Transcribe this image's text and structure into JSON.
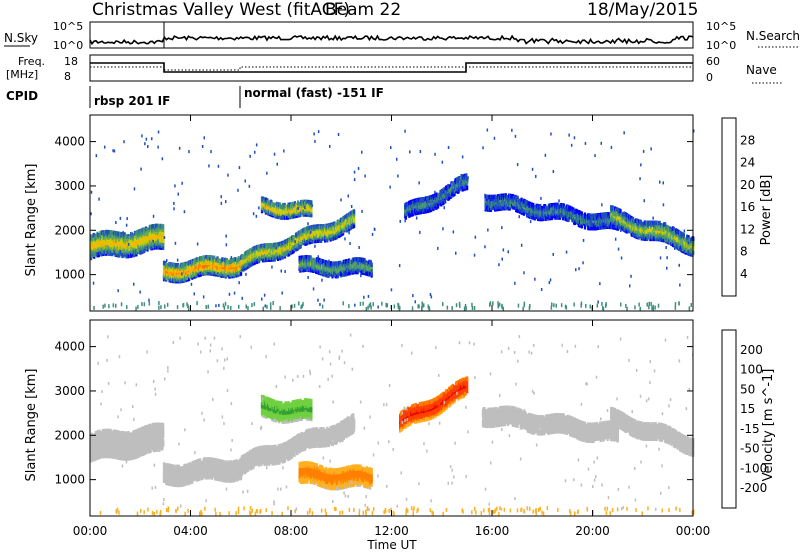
{
  "header": {
    "title": "Christmas Valley West (fitACF)",
    "beam": "Beam 22",
    "date": "18/May/2015"
  },
  "noise_panel": {
    "left_label": "N.Sky",
    "right_label": "N.Search",
    "left_ticks": [
      "10^5",
      "10^0"
    ],
    "right_ticks": [
      "10^5",
      "10^0"
    ]
  },
  "freq_panel": {
    "left_label_1": "Freq.",
    "left_label_2": "[MHz]",
    "right_label": "Nave",
    "left_ticks": [
      "18",
      "8"
    ],
    "right_ticks": [
      "60",
      "0"
    ]
  },
  "cpid_panel": {
    "label": "CPID",
    "modes": [
      {
        "name": "rbsp 201 IF",
        "start_hour": 0
      },
      {
        "name": "normal (fast) -151 IF",
        "start_hour": 6
      }
    ]
  },
  "colors": {
    "power_scale": [
      "#0000ff",
      "#1f4fbf",
      "#3f8f7f",
      "#5faa5f",
      "#cfcf00",
      "#ffb000",
      "#ff7000",
      "#ff3000",
      "#ff0000"
    ],
    "velocity_scale": [
      "#1030c0",
      "#3060e0",
      "#30a030",
      "#70d040",
      "#bebebe",
      "#bebebe",
      "#ffb020",
      "#ff8000",
      "#ff4000",
      "#e00000"
    ]
  },
  "chart_data": [
    {
      "type": "heatmap",
      "name": "power",
      "xlabel": "Time UT",
      "ylabel": "Slant Range [km]",
      "x_ticks": [
        "00:00",
        "04:00",
        "08:00",
        "12:00",
        "16:00",
        "20:00",
        "00:00"
      ],
      "xlim": [
        0,
        24
      ],
      "ylim": [
        180,
        4600
      ],
      "y_ticks": [
        "1000",
        "2000",
        "3000",
        "4000"
      ],
      "colorbar_label": "Power [dB]",
      "colorbar_ticks": [
        "4",
        "8",
        "12",
        "16",
        "20",
        "24",
        "28"
      ],
      "bands": [
        {
          "t0": 0.0,
          "t1": 2.9,
          "r0": 1650,
          "r1": 1850,
          "w": 520,
          "p": 22
        },
        {
          "t0": 2.9,
          "t1": 6.0,
          "r0": 1080,
          "r1": 1250,
          "w": 380,
          "p": 26
        },
        {
          "t0": 6.0,
          "t1": 10.5,
          "r0": 1300,
          "r1": 2250,
          "w": 360,
          "p": 20
        },
        {
          "t0": 6.8,
          "t1": 8.8,
          "r0": 2550,
          "r1": 2450,
          "w": 300,
          "p": 22
        },
        {
          "t0": 8.3,
          "t1": 11.2,
          "r0": 1220,
          "r1": 1150,
          "w": 300,
          "p": 14
        },
        {
          "t0": 12.5,
          "t1": 15.0,
          "r0": 2400,
          "r1": 3100,
          "w": 320,
          "p": 10
        },
        {
          "t0": 15.7,
          "t1": 21.0,
          "r0": 2700,
          "r1": 2150,
          "w": 300,
          "p": 10
        },
        {
          "t0": 20.7,
          "t1": 24.0,
          "r0": 2300,
          "r1": 1700,
          "w": 380,
          "p": 18
        }
      ]
    },
    {
      "type": "heatmap",
      "name": "velocity",
      "xlabel": "Time UT",
      "ylabel": "Slant Range [km]",
      "x_ticks": [
        "00:00",
        "04:00",
        "08:00",
        "12:00",
        "16:00",
        "20:00",
        "00:00"
      ],
      "xlim": [
        0,
        24
      ],
      "ylim": [
        180,
        4600
      ],
      "y_ticks": [
        "1000",
        "2000",
        "3000",
        "4000"
      ],
      "colorbar_label": "Velocity [m s^-1]",
      "colorbar_ticks": [
        "200",
        "100",
        "50",
        "15",
        "-15",
        "-50",
        "-100",
        "-200"
      ],
      "bands": [
        {
          "t0": 0.0,
          "t1": 2.9,
          "r0": 1750,
          "r1": 1950,
          "w": 600,
          "v": 0
        },
        {
          "t0": 2.9,
          "t1": 6.0,
          "r0": 1150,
          "r1": 1300,
          "w": 450,
          "v": 0
        },
        {
          "t0": 6.0,
          "t1": 10.5,
          "r0": 1350,
          "r1": 2250,
          "w": 380,
          "v": 0
        },
        {
          "t0": 6.8,
          "t1": 8.8,
          "r0": 2650,
          "r1": 2550,
          "w": 450,
          "v": 60
        },
        {
          "t0": 8.3,
          "t1": 11.2,
          "r0": 1150,
          "r1": 1050,
          "w": 450,
          "v": -80
        },
        {
          "t0": 12.3,
          "t1": 15.0,
          "r0": 2300,
          "r1": 3100,
          "w": 400,
          "v": -220
        },
        {
          "t0": 15.6,
          "t1": 21.0,
          "r0": 2500,
          "r1": 2050,
          "w": 400,
          "v": 0
        },
        {
          "t0": 20.7,
          "t1": 24.0,
          "r0": 2400,
          "r1": 1800,
          "w": 350,
          "v": 0
        }
      ]
    }
  ]
}
